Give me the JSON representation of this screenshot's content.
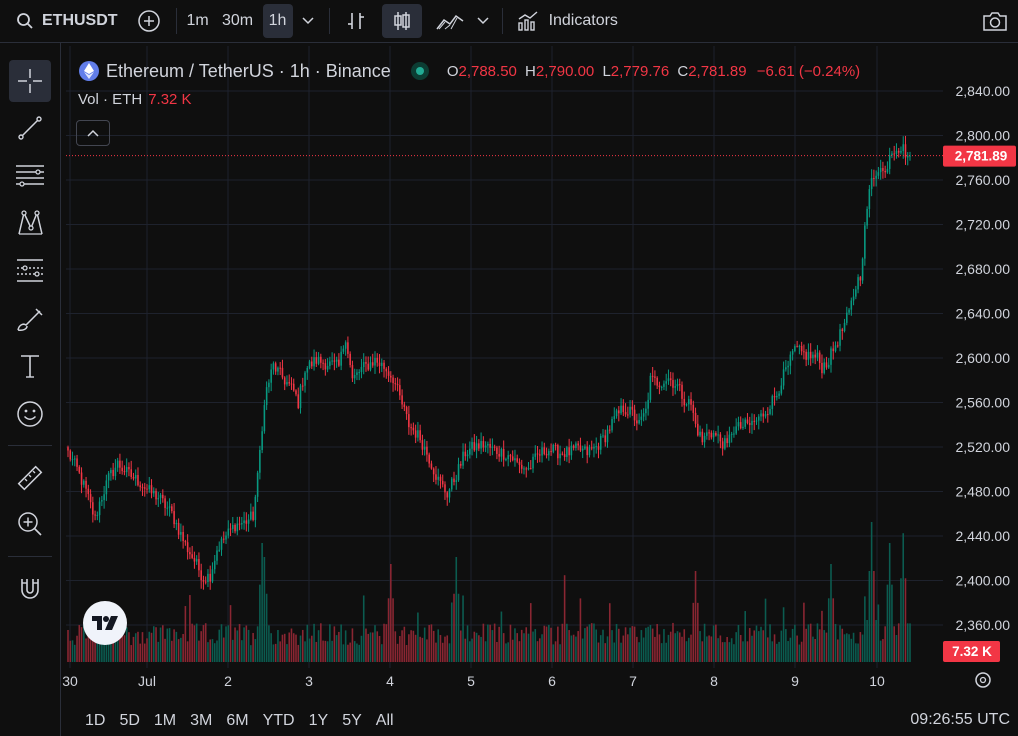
{
  "header": {
    "symbol": "ETHUSDT",
    "intervals": [
      "1m",
      "30m",
      "1h"
    ],
    "active_interval": "1h",
    "indicators_label": "Indicators"
  },
  "legend": {
    "title": "Ethereum / TetherUS · 1h · Binance",
    "o_label": "O",
    "o": "2,788.50",
    "h_label": "H",
    "h": "2,790.00",
    "l_label": "L",
    "l": "2,779.76",
    "c_label": "C",
    "c": "2,781.89",
    "change": "−6.61 (−0.24%)",
    "vol_label": "Vol · ETH",
    "vol_value": "7.32 K"
  },
  "price_axis": {
    "ticks": [
      "2,840.00",
      "2,800.00",
      "2,760.00",
      "2,720.00",
      "2,680.00",
      "2,640.00",
      "2,600.00",
      "2,560.00",
      "2,520.00",
      "2,480.00",
      "2,440.00",
      "2,400.00",
      "2,360.00"
    ],
    "last_price_label": "2,781.89",
    "volume_label": "7.32 K"
  },
  "time_axis": {
    "ticks": [
      "30",
      "Jul",
      "2",
      "3",
      "4",
      "5",
      "6",
      "7",
      "8",
      "9",
      "10"
    ]
  },
  "ranges": [
    "1D",
    "5D",
    "1M",
    "3M",
    "6M",
    "YTD",
    "1Y",
    "5Y",
    "All"
  ],
  "clock": "09:26:55 UTC",
  "colors": {
    "up": "#089981",
    "down": "#f23645",
    "bg": "#0f0f0f",
    "grid": "#1e222d"
  },
  "chart_data": {
    "type": "candlestick",
    "title": "Ethereum / TetherUS · 1h · Binance",
    "ylim": [
      2340,
      2855
    ],
    "close_anchors": [
      [
        0,
        2515
      ],
      [
        4,
        2500
      ],
      [
        8,
        2480
      ],
      [
        12,
        2455
      ],
      [
        14,
        2470
      ],
      [
        18,
        2492
      ],
      [
        22,
        2505
      ],
      [
        26,
        2497
      ],
      [
        32,
        2488
      ],
      [
        36,
        2480
      ],
      [
        40,
        2475
      ],
      [
        46,
        2460
      ],
      [
        52,
        2432
      ],
      [
        56,
        2418
      ],
      [
        60,
        2402
      ],
      [
        63,
        2405
      ],
      [
        66,
        2428
      ],
      [
        70,
        2440
      ],
      [
        74,
        2450
      ],
      [
        78,
        2452
      ],
      [
        82,
        2458
      ],
      [
        84,
        2492
      ],
      [
        86,
        2540
      ],
      [
        88,
        2572
      ],
      [
        91,
        2593
      ],
      [
        96,
        2580
      ],
      [
        100,
        2570
      ],
      [
        102,
        2560
      ],
      [
        105,
        2590
      ],
      [
        110,
        2598
      ],
      [
        115,
        2595
      ],
      [
        120,
        2592
      ],
      [
        123,
        2620
      ],
      [
        126,
        2580
      ],
      [
        130,
        2590
      ],
      [
        136,
        2598
      ],
      [
        140,
        2592
      ],
      [
        144,
        2582
      ],
      [
        148,
        2558
      ],
      [
        151,
        2540
      ],
      [
        156,
        2528
      ],
      [
        160,
        2510
      ],
      [
        164,
        2490
      ],
      [
        168,
        2478
      ],
      [
        172,
        2495
      ],
      [
        176,
        2515
      ],
      [
        180,
        2520
      ],
      [
        184,
        2522
      ],
      [
        188,
        2518
      ],
      [
        192,
        2515
      ],
      [
        196,
        2512
      ],
      [
        200,
        2503
      ],
      [
        204,
        2500
      ],
      [
        208,
        2512
      ],
      [
        212,
        2518
      ],
      [
        218,
        2515
      ],
      [
        222,
        2515
      ],
      [
        226,
        2518
      ],
      [
        230,
        2515
      ],
      [
        234,
        2520
      ],
      [
        238,
        2530
      ],
      [
        242,
        2545
      ],
      [
        246,
        2555
      ],
      [
        250,
        2550
      ],
      [
        253,
        2540
      ],
      [
        256,
        2552
      ],
      [
        258,
        2580
      ],
      [
        262,
        2578
      ],
      [
        266,
        2582
      ],
      [
        270,
        2575
      ],
      [
        273,
        2563
      ],
      [
        276,
        2558
      ],
      [
        278,
        2540
      ],
      [
        281,
        2525
      ],
      [
        284,
        2535
      ],
      [
        288,
        2528
      ],
      [
        292,
        2520
      ],
      [
        294,
        2535
      ],
      [
        298,
        2538
      ],
      [
        302,
        2540
      ],
      [
        306,
        2545
      ],
      [
        310,
        2555
      ],
      [
        314,
        2568
      ],
      [
        316,
        2580
      ],
      [
        319,
        2592
      ],
      [
        322,
        2608
      ],
      [
        324,
        2605
      ],
      [
        328,
        2602
      ],
      [
        332,
        2600
      ],
      [
        334,
        2592
      ],
      [
        337,
        2598
      ],
      [
        340,
        2612
      ],
      [
        343,
        2625
      ],
      [
        346,
        2640
      ],
      [
        349,
        2665
      ],
      [
        351,
        2675
      ],
      [
        354,
        2735
      ],
      [
        356,
        2760
      ],
      [
        359,
        2772
      ],
      [
        362,
        2765
      ],
      [
        364,
        2785
      ],
      [
        367,
        2790
      ],
      [
        370,
        2788
      ],
      [
        372,
        2782
      ]
    ],
    "volume_peaks": [
      [
        86,
        0.85
      ],
      [
        87,
        0.75
      ],
      [
        143,
        0.7
      ],
      [
        172,
        0.75
      ],
      [
        220,
        0.42
      ],
      [
        278,
        0.65
      ],
      [
        338,
        0.7
      ],
      [
        356,
        1.0
      ],
      [
        364,
        0.85
      ],
      [
        370,
        0.92
      ]
    ],
    "last_close": 2781.89,
    "last_volume": "7.32 K"
  }
}
